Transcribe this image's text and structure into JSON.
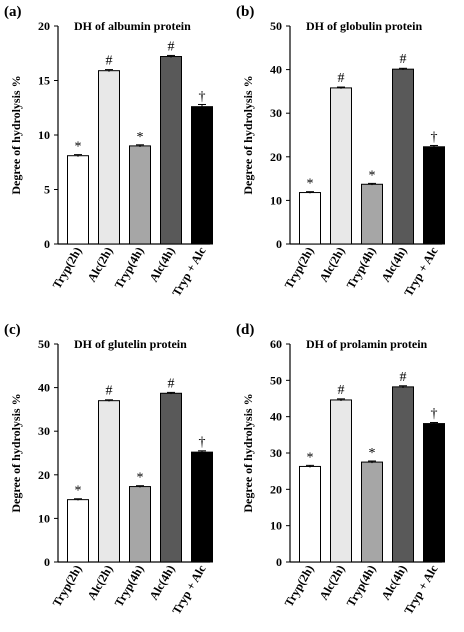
{
  "chart_data": [
    {
      "type": "bar",
      "panel": "(a)",
      "title": "DH of albumin protein",
      "ylabel": "Degree of hydrolysis %",
      "ylim": [
        0,
        20
      ],
      "yticks": [
        "0",
        "5",
        "10",
        "15",
        "20"
      ],
      "categories": [
        "Tryp(2h)",
        "Alc(2h)",
        "Tryp(4h)",
        "Alc(4h)",
        "Tryp + Alc"
      ],
      "values": [
        8.1,
        15.9,
        9.0,
        17.2,
        12.6
      ],
      "errors": [
        0.1,
        0.1,
        0.1,
        0.1,
        0.2
      ],
      "markers": [
        "*",
        "#",
        "*",
        "#",
        "†"
      ],
      "bar_colors": [
        "#ffffff",
        "#e8e8e8",
        "#a6a6a6",
        "#595959",
        "#000000"
      ]
    },
    {
      "type": "bar",
      "panel": "(b)",
      "title": "DH of globulin protein",
      "ylabel": "Degree of hydrolysis %",
      "ylim": [
        0,
        50
      ],
      "yticks": [
        "0",
        "10",
        "20",
        "30",
        "40",
        "50"
      ],
      "categories": [
        "Tryp(2h)",
        "Alc(2h)",
        "Tryp(4h)",
        "Alc(4h)",
        "Tryp + Alc"
      ],
      "values": [
        11.8,
        35.8,
        13.7,
        40.1,
        22.3
      ],
      "errors": [
        0.2,
        0.2,
        0.2,
        0.2,
        0.3
      ],
      "markers": [
        "*",
        "#",
        "*",
        "#",
        "†"
      ],
      "bar_colors": [
        "#ffffff",
        "#e8e8e8",
        "#a6a6a6",
        "#595959",
        "#000000"
      ]
    },
    {
      "type": "bar",
      "panel": "(c)",
      "title": "DH of glutelin protein",
      "ylabel": "Degree of hydrolysis %",
      "ylim": [
        0,
        50
      ],
      "yticks": [
        "0",
        "10",
        "20",
        "30",
        "40",
        "50"
      ],
      "categories": [
        "Tryp(2h)",
        "Alc(2h)",
        "Tryp(4h)",
        "Alc(4h)",
        "Tryp + Alc"
      ],
      "values": [
        14.3,
        37.0,
        17.3,
        38.7,
        25.2
      ],
      "errors": [
        0.2,
        0.2,
        0.2,
        0.2,
        0.3
      ],
      "markers": [
        "*",
        "#",
        "*",
        "#",
        "†"
      ],
      "bar_colors": [
        "#ffffff",
        "#e8e8e8",
        "#a6a6a6",
        "#595959",
        "#000000"
      ]
    },
    {
      "type": "bar",
      "panel": "(d)",
      "title": "DH of prolamin protein",
      "ylabel": "Degree of hydrolysis %",
      "ylim": [
        0,
        60
      ],
      "yticks": [
        "0",
        "10",
        "20",
        "30",
        "40",
        "50",
        "60"
      ],
      "categories": [
        "Tryp(2h)",
        "Alc(2h)",
        "Tryp(4h)",
        "Alc(4h)",
        "Tryp + Alc"
      ],
      "values": [
        26.3,
        44.6,
        27.5,
        48.2,
        38.1
      ],
      "errors": [
        0.3,
        0.3,
        0.3,
        0.3,
        0.3
      ],
      "markers": [
        "*",
        "#",
        "*",
        "#",
        "†"
      ],
      "bar_colors": [
        "#ffffff",
        "#e8e8e8",
        "#a6a6a6",
        "#595959",
        "#000000"
      ]
    }
  ]
}
